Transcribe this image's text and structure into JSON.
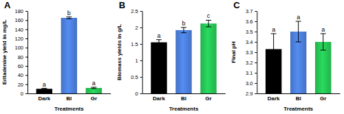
{
  "chart_data": [
    {
      "type": "bar",
      "title": "A",
      "x_label": "Treatments",
      "y_label": "Eritadenine yield in mg/L",
      "categories": [
        "Dark",
        "Bl",
        "Gr"
      ],
      "values": [
        10,
        165,
        12
      ],
      "errors": [
        1,
        2,
        1.5
      ],
      "annotations": [
        "a",
        "b",
        "a"
      ],
      "colors": [
        "#000000",
        "#4472c4",
        "#22b14c"
      ],
      "ylim": [
        0,
        180
      ],
      "yticks": [
        0,
        20,
        40,
        60,
        80,
        100,
        120,
        140,
        160,
        180
      ]
    },
    {
      "type": "bar",
      "title": "B",
      "x_label": "Treatments",
      "y_label": "Biomass yields in g/L",
      "categories": [
        "Dark",
        "Bl",
        "Gr"
      ],
      "values": [
        1.55,
        1.92,
        2.12
      ],
      "errors": [
        0.08,
        0.08,
        0.1
      ],
      "annotations": [
        "a",
        "b",
        "c"
      ],
      "colors": [
        "#000000",
        "#4472c4",
        "#22b14c"
      ],
      "ylim": [
        0,
        2.5
      ],
      "yticks": [
        0,
        0.5,
        1,
        1.5,
        2,
        2.5
      ]
    },
    {
      "type": "bar",
      "title": "C",
      "x_label": "Treatments",
      "y_label": "Final pH",
      "categories": [
        "Dark",
        "Bl",
        "Gr"
      ],
      "values": [
        3.33,
        3.5,
        3.4
      ],
      "errors": [
        0.15,
        0.1,
        0.08
      ],
      "annotations": [
        "a",
        "a",
        "a"
      ],
      "colors": [
        "#000000",
        "#4472c4",
        "#22b14c"
      ],
      "ylim": [
        2.9,
        3.7
      ],
      "yticks": [
        2.9,
        {
          "value": 3,
          "label": "3.0"
        },
        3.1,
        3.2,
        3.3,
        3.4,
        3.5,
        3.6,
        3.7
      ]
    }
  ]
}
